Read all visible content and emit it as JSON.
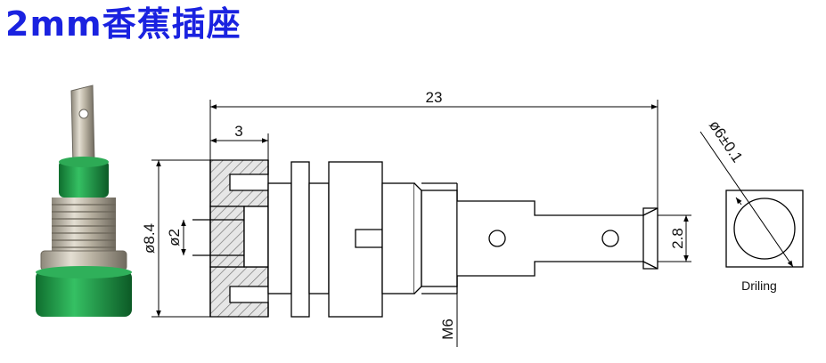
{
  "title": "2mm香蕉插座",
  "colors": {
    "title": "#1a22e0",
    "hatch_fill": "#e6e6e6",
    "line": "#000000",
    "product_green": "#1f9a46",
    "product_metal": "#c8c2b4"
  },
  "dimensions": {
    "overall_length": "23",
    "head_width": "3",
    "head_diameter": "ø8.4",
    "hole_diameter": "ø2",
    "thread": "M6",
    "tab_width": "2.8",
    "drill_diameter": "ø6±0.1"
  },
  "drilling_label": "Driling"
}
